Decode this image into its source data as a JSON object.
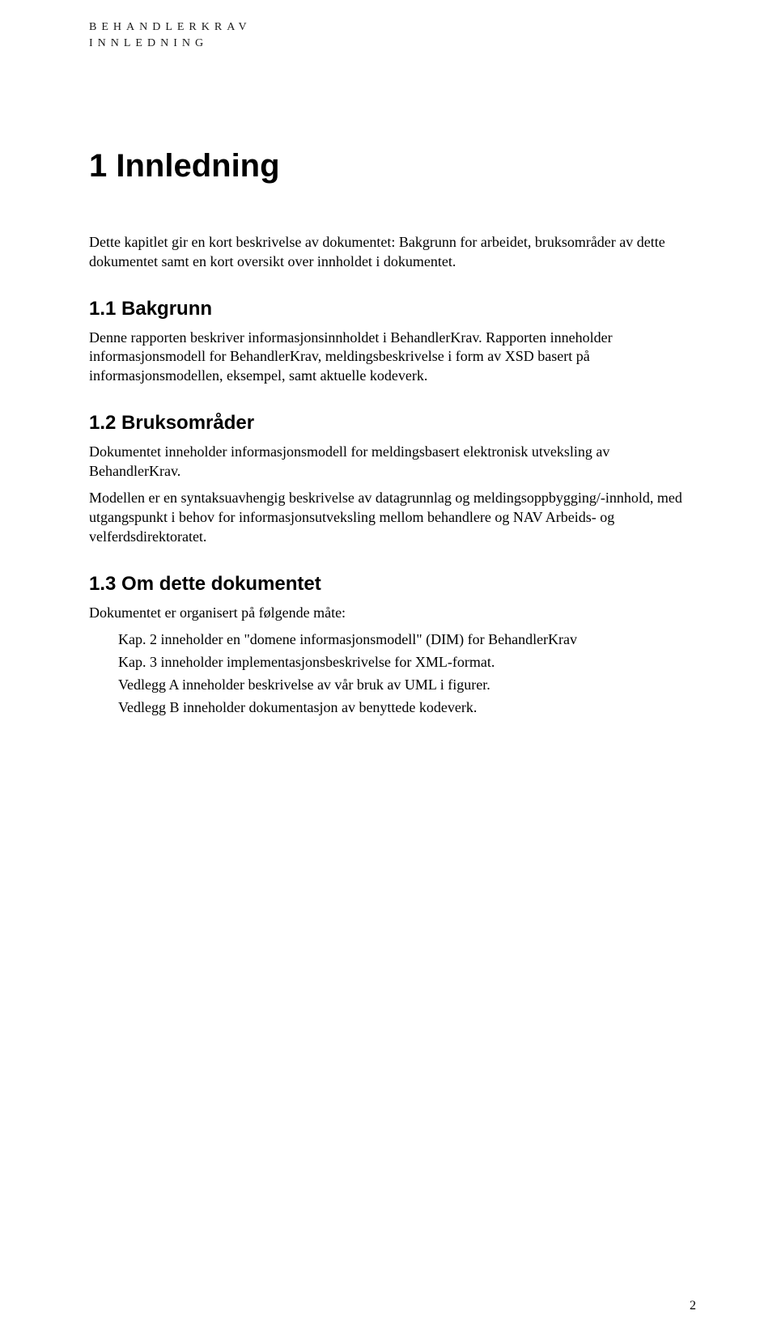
{
  "header": {
    "line1": "BEHANDLERKRAV",
    "line2": "INNLEDNING"
  },
  "h1": "1 Innledning",
  "intro_p": "Dette kapitlet gir en kort beskrivelse av dokumentet: Bakgrunn for arbeidet, bruksområder av dette dokumentet samt en kort oversikt over innholdet i dokumentet.",
  "s1_1": {
    "heading": "1.1  Bakgrunn",
    "p": "Denne rapporten beskriver informasjonsinnholdet i BehandlerKrav. Rapporten inneholder informasjonsmodell for BehandlerKrav, meldingsbeskrivelse i form av XSD basert på informasjonsmodellen, eksempel, samt aktuelle kodeverk."
  },
  "s1_2": {
    "heading": "1.2  Bruksområder",
    "p1": "Dokumentet inneholder informasjonsmodell for meldingsbasert elektronisk utveksling av BehandlerKrav.",
    "p2": "Modellen er en syntaksuavhengig beskrivelse av datagrunnlag og meldingsoppbygging/-innhold, med utgangspunkt i behov for informasjonsutveksling mellom behandlere og NAV Arbeids- og velferdsdirektoratet."
  },
  "s1_3": {
    "heading": "1.3  Om dette dokumentet",
    "p": "Dokumentet er organisert på følgende måte:",
    "items": {
      "i1": "Kap. 2 inneholder en \"domene informasjonsmodell\" (DIM) for BehandlerKrav",
      "i2": "Kap. 3 inneholder implementasjonsbeskrivelse for XML-format.",
      "i3": "Vedlegg A inneholder beskrivelse av vår bruk av UML i figurer.",
      "i4": "Vedlegg B inneholder dokumentasjon av benyttede kodeverk."
    }
  },
  "page_number": "2"
}
